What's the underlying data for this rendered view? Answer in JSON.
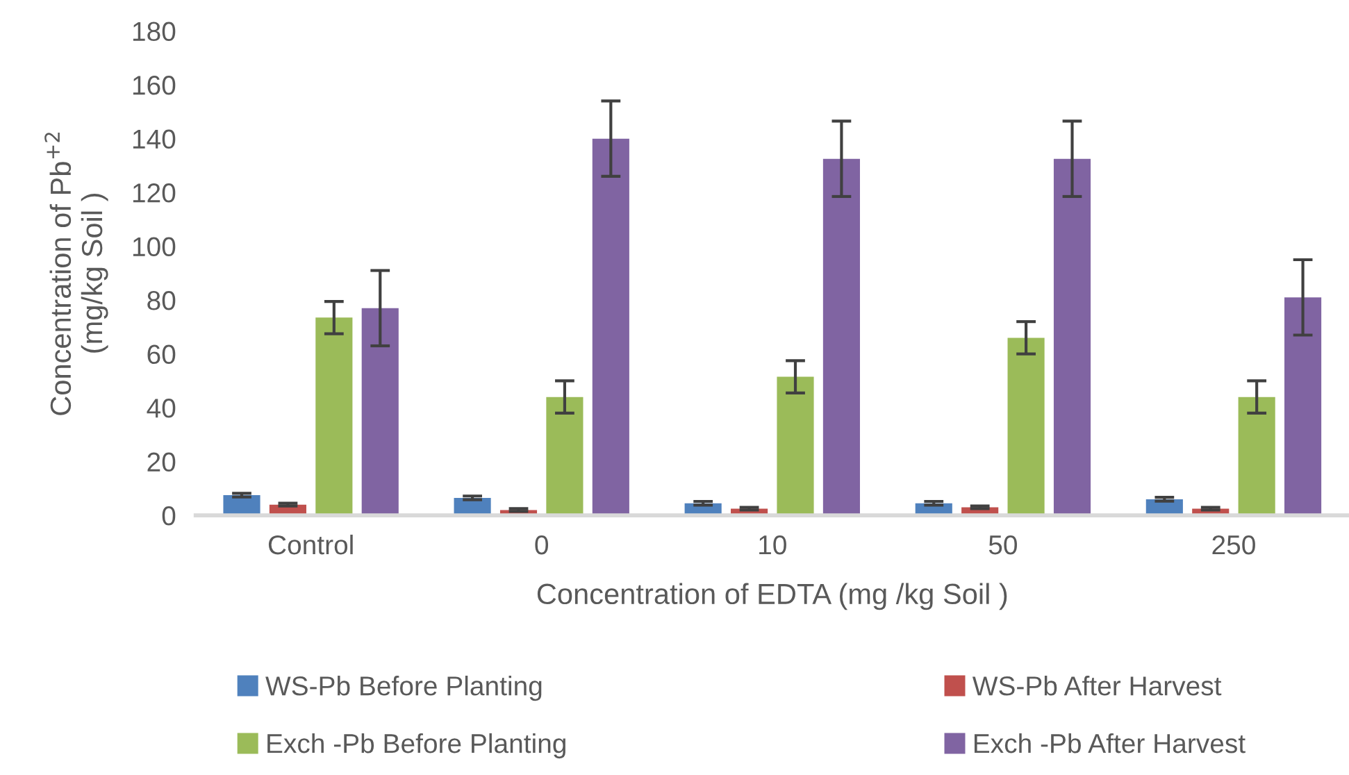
{
  "chart_data": {
    "type": "bar",
    "xlabel": "Concentration of EDTA (mg /kg Soil )",
    "ylabel": "Concentration of Pb$^{+2}$\n(mg/kg Soil )",
    "categories": [
      "Control",
      "0",
      "10",
      "50",
      "250"
    ],
    "series": [
      {
        "name": "WS-Pb Before Planting",
        "color": "#4f81bd",
        "values": [
          7.5,
          6.5,
          4.5,
          4.5,
          6
        ],
        "errors": [
          0.7,
          0.7,
          0.7,
          0.7,
          0.7
        ]
      },
      {
        "name": "WS-Pb After Harvest",
        "color": "#c0504d",
        "values": [
          4,
          2,
          2.5,
          3,
          2.5
        ],
        "errors": [
          0.5,
          0.5,
          0.5,
          0.5,
          0.5
        ]
      },
      {
        "name": "Exch -Pb Before Planting",
        "color": "#9bbb59",
        "values": [
          73.5,
          44,
          51.5,
          66,
          44
        ],
        "errors": [
          6,
          6,
          6,
          6,
          6
        ]
      },
      {
        "name": "Exch -Pb After Harvest",
        "color": "#8064a2",
        "values": [
          77,
          140,
          132.5,
          132.5,
          81
        ],
        "errors": [
          14,
          14,
          14,
          14,
          14
        ]
      }
    ],
    "ylim": [
      0,
      180
    ],
    "yticks": [
      0,
      20,
      40,
      60,
      80,
      100,
      120,
      140,
      160,
      180
    ],
    "grid": false,
    "legend": "bottom"
  }
}
